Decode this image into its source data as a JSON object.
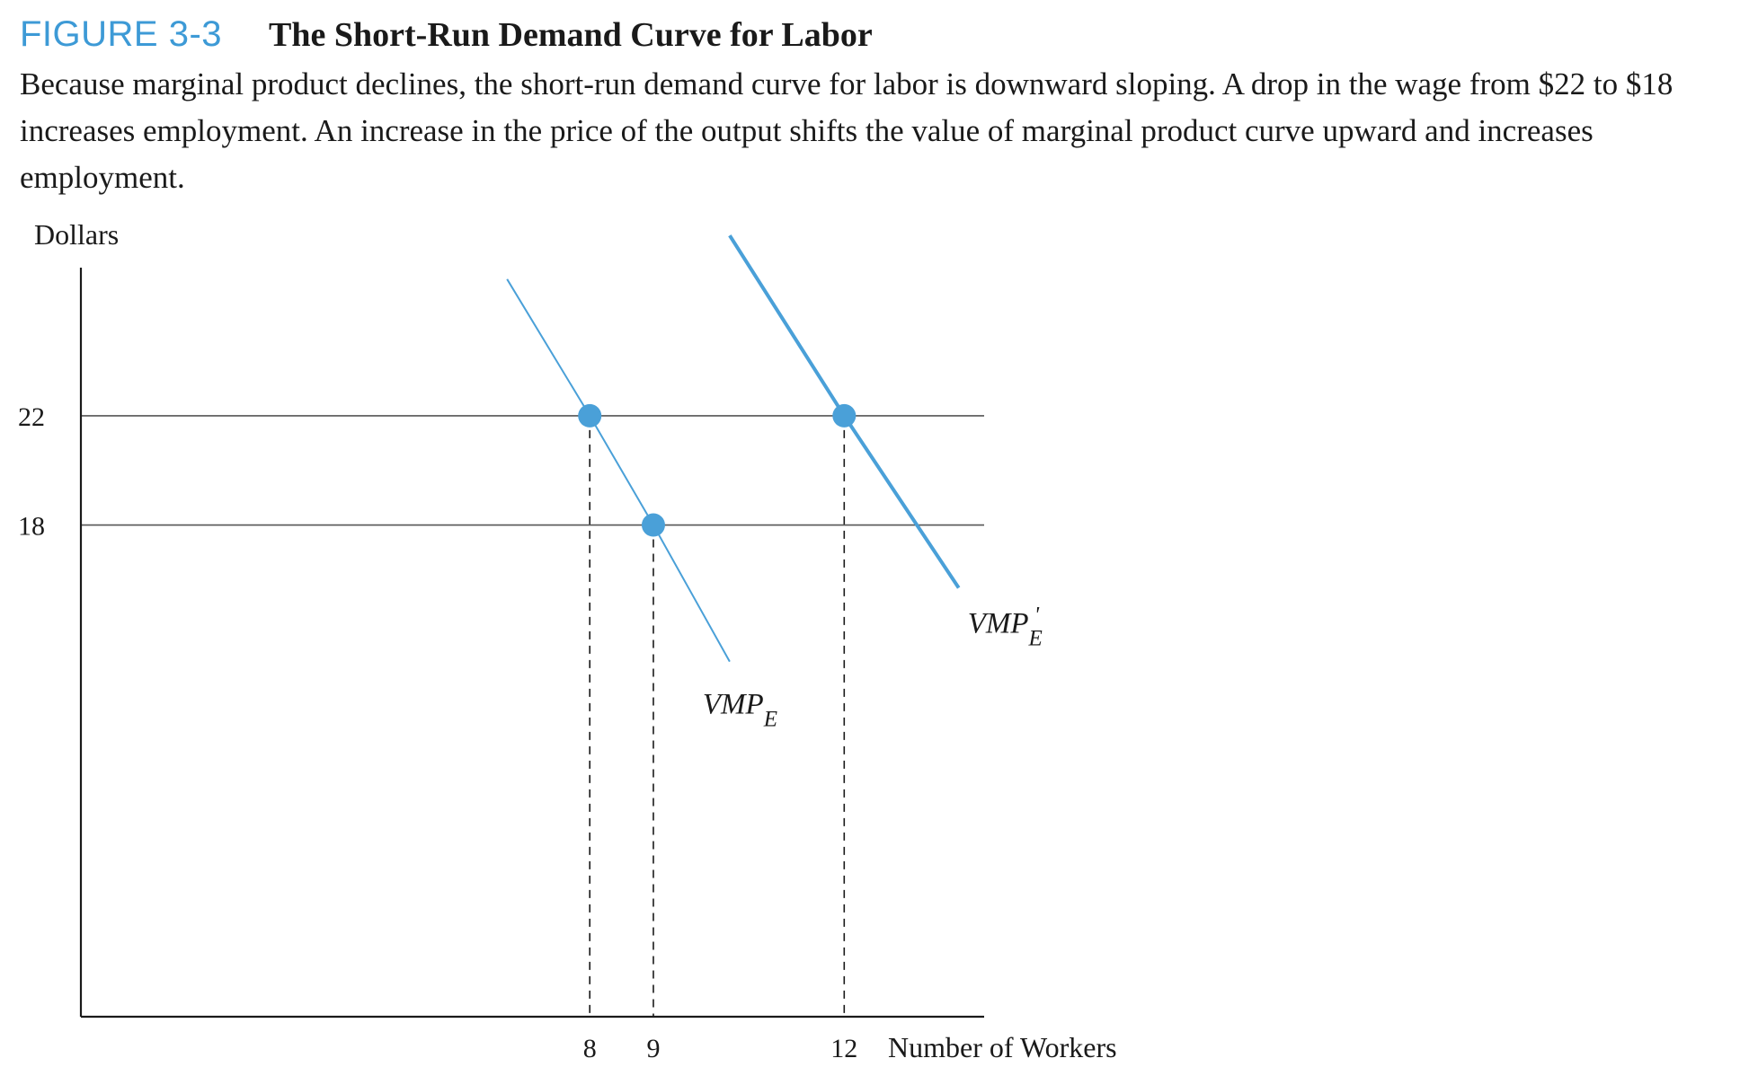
{
  "figure": {
    "label": "FIGURE 3-3",
    "title": "The Short-Run Demand Curve for Labor",
    "caption": "Because marginal product declines, the short-run demand curve for labor is downward sloping. A drop in the wage from $22 to $18 increases employment. An increase in the price of the output shifts the value of marginal product curve upward and increases employment."
  },
  "colors": {
    "accent": "#3d9ad6",
    "curve": "#4aa0d8",
    "axis": "#1a1a1a",
    "wage_line": "#555555"
  },
  "chart_data": {
    "type": "line",
    "ylabel": "Dollars",
    "xlabel": "Number of Workers",
    "xlim": [
      0,
      14.2
    ],
    "ylim": [
      0,
      29
    ],
    "y_ticks": [
      {
        "value": 22,
        "label": "22"
      },
      {
        "value": 18,
        "label": "18"
      }
    ],
    "x_ticks": [
      {
        "value": 8,
        "label": "8"
      },
      {
        "value": 9,
        "label": "9"
      },
      {
        "value": 12,
        "label": "12"
      }
    ],
    "wage_lines": [
      22,
      18
    ],
    "series": [
      {
        "name": "VMP",
        "subscript": "E",
        "prime": false,
        "points": [
          [
            6.7,
            27.0
          ],
          [
            8,
            22
          ],
          [
            9,
            18
          ],
          [
            10.2,
            13.0
          ]
        ],
        "stroke": 2
      },
      {
        "name": "VMP",
        "subscript": "E",
        "prime": true,
        "points": [
          [
            10.2,
            28.6
          ],
          [
            12,
            22
          ],
          [
            13.8,
            15.7
          ]
        ],
        "stroke": 4
      }
    ],
    "highlighted_points": [
      {
        "x": 8,
        "y": 22
      },
      {
        "x": 9,
        "y": 18
      },
      {
        "x": 12,
        "y": 22
      }
    ]
  }
}
